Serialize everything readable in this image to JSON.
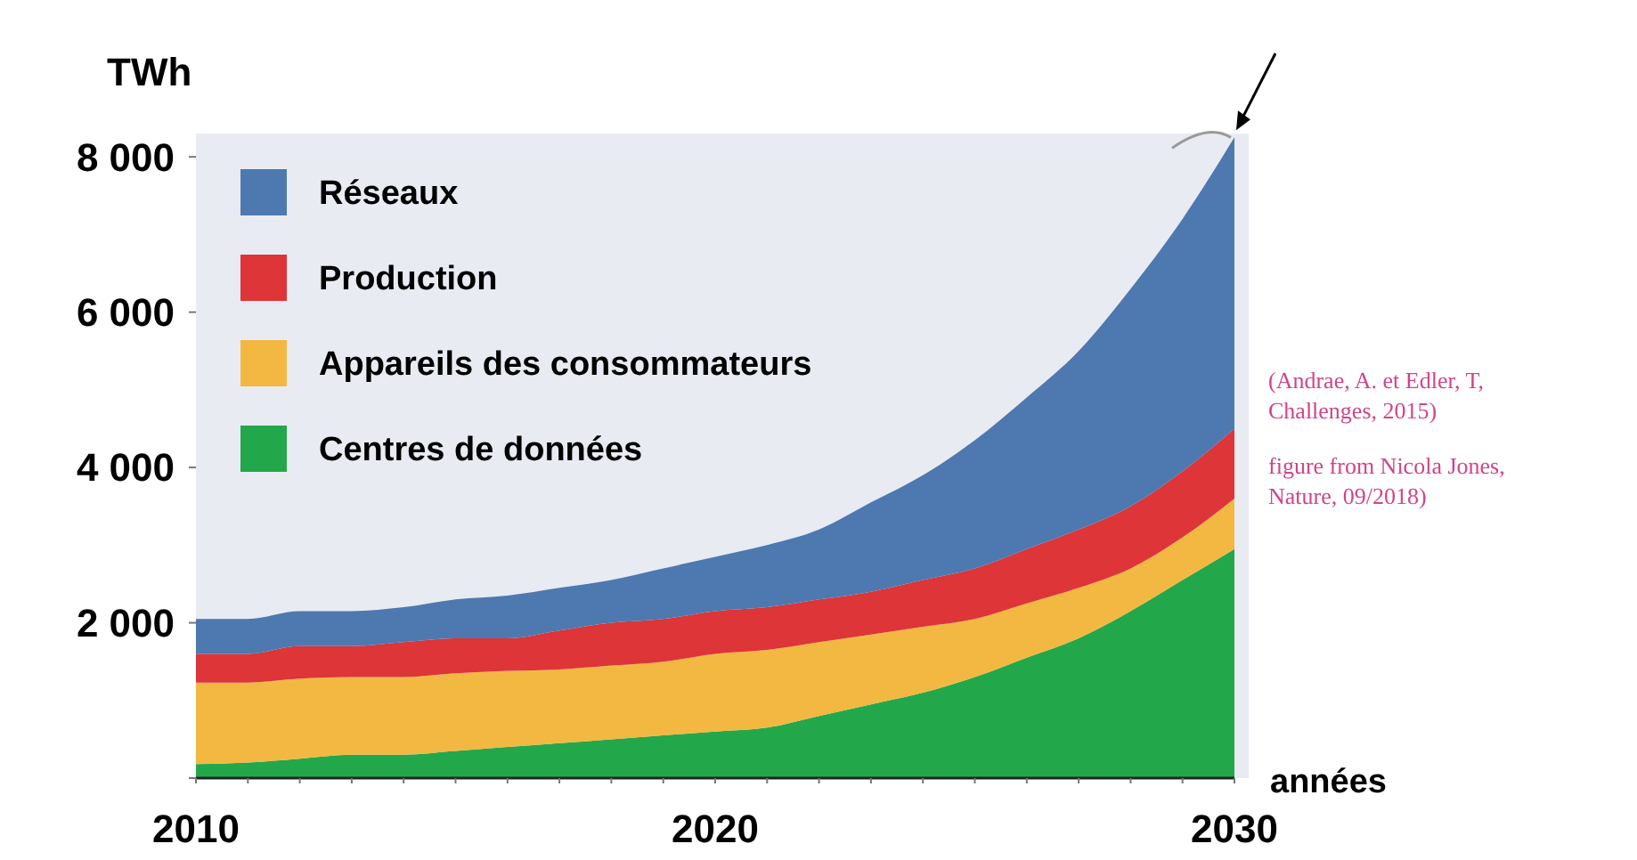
{
  "chart_data": {
    "type": "area",
    "stacked": true,
    "ylabel": "TWh",
    "xlabel": "années",
    "x": [
      2010,
      2011,
      2012,
      2013,
      2014,
      2015,
      2016,
      2017,
      2018,
      2019,
      2020,
      2021,
      2022,
      2023,
      2024,
      2025,
      2026,
      2027,
      2028,
      2029,
      2030
    ],
    "series": [
      {
        "name": "Centres de données",
        "color": "#22a84a",
        "values": [
          180,
          200,
          250,
          300,
          300,
          350,
          400,
          450,
          500,
          550,
          600,
          650,
          800,
          950,
          1100,
          1300,
          1550,
          1800,
          2150,
          2550,
          2950
        ]
      },
      {
        "name": "Appareils des consommateurs",
        "color": "#f3b842",
        "values": [
          1050,
          1030,
          1030,
          1000,
          1000,
          1000,
          980,
          950,
          950,
          950,
          1000,
          1000,
          950,
          900,
          850,
          750,
          700,
          650,
          550,
          550,
          650
        ]
      },
      {
        "name": "Production",
        "color": "#dd3538",
        "values": [
          370,
          370,
          420,
          400,
          450,
          450,
          420,
          500,
          550,
          550,
          550,
          550,
          550,
          550,
          600,
          650,
          700,
          750,
          800,
          850,
          900
        ]
      },
      {
        "name": "Réseaux",
        "color": "#4d79b0",
        "values": [
          450,
          450,
          450,
          450,
          450,
          500,
          550,
          550,
          550,
          650,
          700,
          800,
          900,
          1150,
          1350,
          1650,
          1950,
          2300,
          2800,
          3250,
          3750
        ]
      }
    ],
    "xlim": [
      2010,
      2030
    ],
    "xticks": [
      2010,
      {
        "value": 2011,
        "label": null
      },
      {
        "value": 2012,
        "label": null
      },
      {
        "value": 2013,
        "label": null
      },
      {
        "value": 2014,
        "label": null
      },
      {
        "value": 2015,
        "label": null
      },
      {
        "value": 2016,
        "label": null
      },
      {
        "value": 2017,
        "label": null
      },
      {
        "value": 2018,
        "label": null
      },
      {
        "value": 2019,
        "label": null
      },
      2020,
      {
        "value": 2021,
        "label": null
      },
      {
        "value": 2022,
        "label": null
      },
      {
        "value": 2023,
        "label": null
      },
      {
        "value": 2024,
        "label": null
      },
      {
        "value": 2025,
        "label": null
      },
      {
        "value": 2026,
        "label": null
      },
      {
        "value": 2027,
        "label": null
      },
      {
        "value": 2028,
        "label": null
      },
      {
        "value": 2029,
        "label": null
      },
      2030
    ],
    "ylim": [
      0,
      8300
    ],
    "yticks": [
      {
        "value": 0,
        "label": null
      },
      {
        "value": 2000,
        "label": "2 000"
      },
      {
        "value": 4000,
        "label": "4 000"
      },
      {
        "value": 6000,
        "label": "6 000"
      },
      {
        "value": 8000,
        "label": "8 000"
      }
    ],
    "legend": "top left",
    "grid": false,
    "annotations": [
      "(Andrae, A. et Edler, T,\nChallenges, 2015)",
      "figure from Nicola Jones,\nNature, 09/2018)"
    ]
  }
}
